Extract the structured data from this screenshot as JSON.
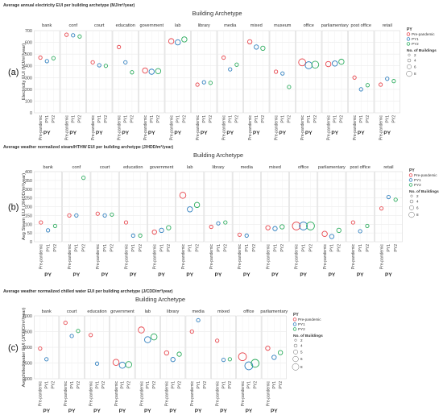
{
  "chart_data": [
    {
      "type": "scatter",
      "panel_label": "(a)",
      "title": "Average annual electricity EUI per building archetype (MJ/m²/year)",
      "facet_title": "Building Archetype",
      "ylabel": "Electricity EUI (MJ/m²/year)",
      "ylim": [
        0,
        700
      ],
      "yticks": [
        "0",
        "100",
        "200",
        "300",
        "400",
        "500",
        "600",
        "700"
      ],
      "xlabel": "PY",
      "x_levels": [
        "Pre-pandemic",
        "PY1",
        "PY2"
      ],
      "categories": [
        "bank",
        "conf",
        "court",
        "education",
        "government",
        "lab",
        "library",
        "media",
        "mixed",
        "museum",
        "office",
        "parliamentary",
        "post office",
        "retail"
      ],
      "series": [
        {
          "name": "Pre-pandemic",
          "values": [
            470,
            665,
            430,
            560,
            360,
            610,
            240,
            470,
            605,
            350,
            430,
            415,
            300,
            240
          ]
        },
        {
          "name": "PY1",
          "values": [
            440,
            660,
            405,
            430,
            350,
            600,
            260,
            370,
            560,
            335,
            405,
            420,
            200,
            290
          ]
        },
        {
          "name": "PY2",
          "values": [
            465,
            650,
            400,
            345,
            355,
            625,
            255,
            410,
            550,
            220,
            410,
            435,
            235,
            270
          ]
        }
      ],
      "sizes": [
        [
          1,
          1,
          1,
          1,
          3,
          3,
          1,
          1,
          2,
          1,
          5,
          3,
          1,
          1
        ],
        [
          1,
          1,
          1,
          1,
          3,
          3,
          1,
          1,
          2,
          1,
          5,
          3,
          1,
          1
        ],
        [
          1,
          1,
          1,
          1,
          3,
          3,
          1,
          1,
          2,
          1,
          5,
          3,
          1,
          1
        ]
      ],
      "legend": {
        "title": "PY",
        "entries": [
          "Pre-pandemic",
          "PY1",
          "PY2"
        ],
        "size_title": "No. of Buildings",
        "size_values": [
          "2",
          "4",
          "6",
          "8"
        ],
        "placement": "right"
      }
    },
    {
      "type": "scatter",
      "panel_label": "(b)",
      "title": "Average weather normalized steam/HTHW EUI per building archetype (J/HDD/m²/year)",
      "facet_title": "Building Archetype",
      "ylabel": "Avg Steam EUI (J/HDD/m²/year)",
      "ylim": [
        0,
        400
      ],
      "yticks": [
        "0",
        "50",
        "100",
        "150",
        "200",
        "250",
        "300",
        "350",
        "400"
      ],
      "xlabel": "PY",
      "x_levels": [
        "Pre-pandemic",
        "PY1",
        "PY2"
      ],
      "categories": [
        "bank",
        "conf",
        "court",
        "education",
        "government",
        "lab",
        "library",
        "media",
        "mixed",
        "office",
        "parliamentary",
        "post office",
        "retail"
      ],
      "series": [
        {
          "name": "Pre-pandemic",
          "values": [
            110,
            150,
            160,
            110,
            55,
            265,
            85,
            40,
            80,
            90,
            45,
            110,
            190
          ]
        },
        {
          "name": "PY1",
          "values": [
            65,
            150,
            150,
            35,
            65,
            185,
            105,
            35,
            75,
            90,
            30,
            60,
            255
          ]
        },
        {
          "name": "PY2",
          "values": [
            90,
            365,
            155,
            35,
            80,
            210,
            110,
            null,
            85,
            90,
            65,
            90,
            240
          ]
        }
      ],
      "sizes": [
        [
          1,
          1,
          1,
          1,
          2,
          4,
          1,
          1,
          2,
          6,
          3,
          1,
          1
        ],
        [
          1,
          1,
          1,
          1,
          2,
          3,
          1,
          1,
          2,
          6,
          2,
          1,
          1
        ],
        [
          1,
          1,
          1,
          1,
          2,
          3,
          1,
          1,
          2,
          6,
          2,
          1,
          1
        ]
      ],
      "legend": {
        "title": "PY",
        "entries": [
          "Pre-pandemic",
          "PY1",
          "PY2"
        ],
        "size_title": "No. of Buildings",
        "size_values": [
          "2",
          "4",
          "6",
          "8"
        ],
        "placement": "right"
      }
    },
    {
      "type": "scatter",
      "panel_label": "(c)",
      "title": "Average weather normalized chilled water EUI per building archetype (J/CDD/m²/year)",
      "facet_title": "Building Archetype",
      "ylabel": "Avg chilled water EUI (J/CDD/m²/year)",
      "ylim": [
        0,
        2000
      ],
      "yticks": [
        "0000",
        "0500",
        "1000",
        "1500",
        "2000"
      ],
      "xlabel": "PY",
      "x_levels": [
        "Pre-pandemic",
        "PY1",
        "PY2"
      ],
      "categories": [
        "bank",
        "court",
        "education",
        "government",
        "lab",
        "library",
        "media",
        "mixed",
        "office",
        "parliamentary"
      ],
      "series": [
        {
          "name": "Pre-pandemic",
          "values": [
            960,
            1780,
            1390,
            520,
            1550,
            820,
            1500,
            1210,
            700,
            970
          ]
        },
        {
          "name": "PY1",
          "values": [
            620,
            1360,
            480,
            430,
            1240,
            610,
            1860,
            600,
            410,
            680
          ]
        },
        {
          "name": "PY2",
          "values": [
            null,
            1520,
            null,
            450,
            1330,
            780,
            null,
            620,
            490,
            830
          ]
        }
      ],
      "sizes": [
        [
          1,
          1,
          1,
          4,
          4,
          2,
          1,
          1,
          6,
          2
        ],
        [
          1,
          1,
          1,
          4,
          4,
          2,
          1,
          1,
          6,
          2
        ],
        [
          1,
          1,
          1,
          4,
          4,
          2,
          1,
          1,
          6,
          2
        ]
      ],
      "legend": {
        "title": "PY",
        "entries": [
          "Pre-pandemic",
          "PY1",
          "PY2"
        ],
        "size_title": "No. of Buildings",
        "size_values": [
          "2",
          "4",
          "5",
          "6",
          "8"
        ],
        "placement": "right"
      }
    }
  ],
  "colors": {
    "Pre-pandemic": "#e8474e",
    "PY1": "#2f7fbf",
    "PY2": "#2ead5f",
    "grid": "#e6e6e6",
    "frame": "#d0d0d0"
  }
}
